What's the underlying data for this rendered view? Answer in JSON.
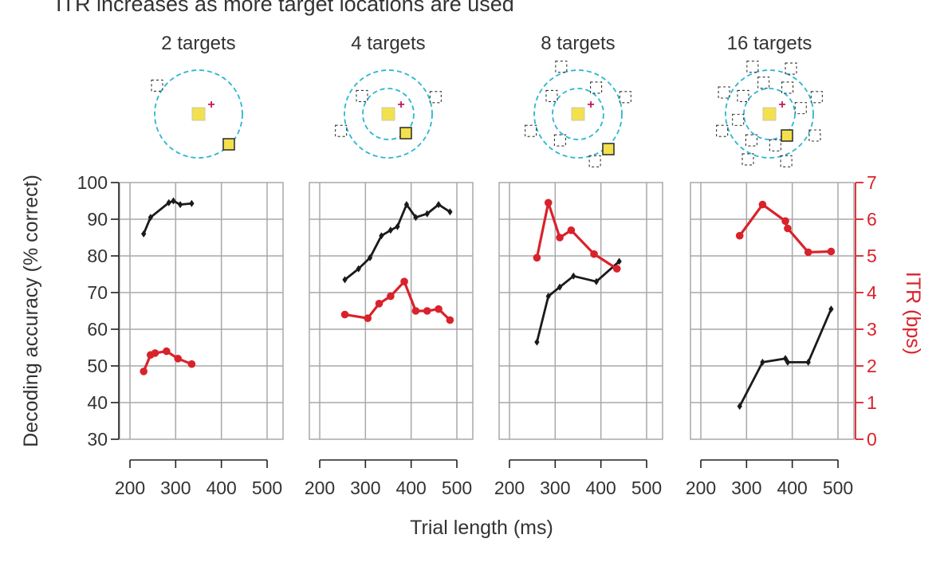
{
  "figure": {
    "heading": "ITR increases as more target locations are used",
    "xlabel": "Trial length (ms)",
    "ylabel_left": "Decoding accuracy (% correct)",
    "ylabel_right": "ITR (bps)"
  },
  "colors": {
    "accuracy": "#1a1a1a",
    "itr": "#d9222b",
    "grid": "#a8a8a8",
    "ring": "#2bb6d1",
    "target_fill": "#f2e14c",
    "fixation": "#c2185b",
    "axis_right": "#d9222b"
  },
  "chart_data": [
    {
      "type": "line",
      "title": "2 targets",
      "x_ticks": [
        200,
        300,
        400,
        500
      ],
      "xlim": [
        200,
        500
      ],
      "ylim_left": [
        30,
        100
      ],
      "ylim_right": [
        0,
        7
      ],
      "y_ticks_left": [
        30,
        40,
        50,
        60,
        70,
        80,
        90,
        100
      ],
      "y_ticks_right": [
        0,
        1,
        2,
        3,
        4,
        5,
        6,
        7
      ],
      "grid": true,
      "rings": 1,
      "series": [
        {
          "name": "Decoding accuracy",
          "axis": "left",
          "marker": "diamond",
          "x": [
            230,
            245,
            285,
            295,
            310,
            335
          ],
          "y": [
            86,
            90.5,
            94.5,
            95,
            94,
            94.3
          ]
        },
        {
          "name": "ITR",
          "axis": "right",
          "marker": "circle",
          "x": [
            230,
            245,
            255,
            280,
            305,
            335
          ],
          "y": [
            1.85,
            2.3,
            2.35,
            2.4,
            2.2,
            2.05
          ]
        }
      ]
    },
    {
      "type": "line",
      "title": "4 targets",
      "x_ticks": [
        200,
        300,
        400,
        500
      ],
      "xlim": [
        200,
        500
      ],
      "ylim_left": [
        30,
        100
      ],
      "ylim_right": [
        0,
        7
      ],
      "y_ticks_left": [
        30,
        40,
        50,
        60,
        70,
        80,
        90,
        100
      ],
      "y_ticks_right": [
        0,
        1,
        2,
        3,
        4,
        5,
        6,
        7
      ],
      "grid": true,
      "rings": 2,
      "series": [
        {
          "name": "Decoding accuracy",
          "axis": "left",
          "marker": "diamond",
          "x": [
            255,
            285,
            310,
            335,
            355,
            370,
            390,
            410,
            435,
            460,
            485
          ],
          "y": [
            73.5,
            76.5,
            79.5,
            85.5,
            87,
            88,
            94,
            90.5,
            91.5,
            94,
            92
          ]
        },
        {
          "name": "ITR",
          "axis": "right",
          "marker": "circle",
          "x": [
            255,
            305,
            330,
            355,
            385,
            410,
            435,
            460,
            485
          ],
          "y": [
            3.4,
            3.3,
            3.7,
            3.9,
            4.3,
            3.5,
            3.5,
            3.55,
            3.25
          ]
        }
      ]
    },
    {
      "type": "line",
      "title": "8 targets",
      "x_ticks": [
        200,
        300,
        400,
        500
      ],
      "xlim": [
        200,
        500
      ],
      "ylim_left": [
        30,
        100
      ],
      "ylim_right": [
        0,
        7
      ],
      "y_ticks_left": [
        30,
        40,
        50,
        60,
        70,
        80,
        90,
        100
      ],
      "y_ticks_right": [
        0,
        1,
        2,
        3,
        4,
        5,
        6,
        7
      ],
      "grid": true,
      "rings": 2,
      "series": [
        {
          "name": "Decoding accuracy",
          "axis": "left",
          "marker": "diamond",
          "x": [
            260,
            285,
            310,
            340,
            390,
            440
          ],
          "y": [
            56.5,
            69,
            71.5,
            74.5,
            73,
            78.5
          ]
        },
        {
          "name": "ITR",
          "axis": "right",
          "marker": "circle",
          "x": [
            260,
            285,
            310,
            335,
            385,
            435
          ],
          "y": [
            4.95,
            6.45,
            5.5,
            5.7,
            5.05,
            4.65
          ]
        }
      ]
    },
    {
      "type": "line",
      "title": "16 targets",
      "x_ticks": [
        200,
        300,
        400,
        500
      ],
      "xlim": [
        200,
        500
      ],
      "ylim_left": [
        30,
        100
      ],
      "ylim_right": [
        0,
        7
      ],
      "y_ticks_left": [
        30,
        40,
        50,
        60,
        70,
        80,
        90,
        100
      ],
      "y_ticks_right": [
        0,
        1,
        2,
        3,
        4,
        5,
        6,
        7
      ],
      "grid": true,
      "rings": 2,
      "series": [
        {
          "name": "Decoding accuracy",
          "axis": "left",
          "marker": "diamond",
          "x": [
            285,
            335,
            385,
            390,
            435,
            485
          ],
          "y": [
            39,
            51,
            52,
            51,
            51,
            65.5
          ]
        },
        {
          "name": "ITR",
          "axis": "right",
          "marker": "circle",
          "x": [
            285,
            335,
            385,
            390,
            435,
            485
          ],
          "y": [
            5.55,
            6.4,
            5.95,
            5.75,
            5.1,
            5.12
          ]
        }
      ]
    }
  ]
}
